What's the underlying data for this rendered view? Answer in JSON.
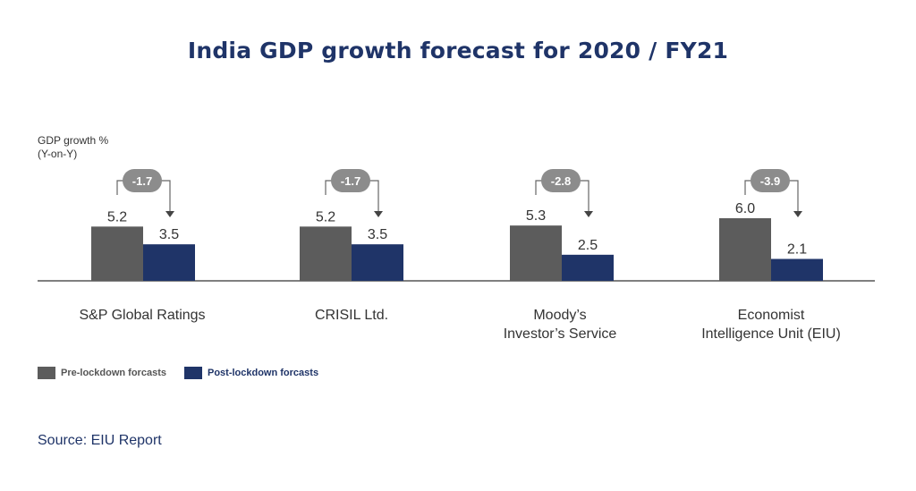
{
  "chart_data": {
    "type": "bar",
    "title": "India GDP growth forecast for 2020 / FY21",
    "ylabel": [
      "GDP growth %",
      "(Y-on-Y)"
    ],
    "categories": [
      [
        "S&P Global Ratings"
      ],
      [
        "CRISIL Ltd."
      ],
      [
        "Moody’s",
        "Investor’s Service"
      ],
      [
        "Economist",
        "Intelligence Unit (EIU)"
      ]
    ],
    "series": [
      {
        "name": "Pre-lockdown forcasts",
        "values": [
          5.2,
          5.2,
          5.3,
          6.0
        ],
        "color": "#5c5c5c"
      },
      {
        "name": "Post-lockdown forcasts",
        "values": [
          3.5,
          3.5,
          2.5,
          2.1
        ],
        "color": "#1f3468"
      }
    ],
    "changes": [
      "-1.7",
      "-1.7",
      "-2.8",
      "-3.9"
    ],
    "value_labels": [
      [
        "5.2",
        "5.2",
        "5.3",
        "6.0"
      ],
      [
        "3.5",
        "3.5",
        "2.5",
        "2.1"
      ]
    ],
    "ylim": [
      0,
      6.0
    ],
    "grid": false,
    "legend_position": "bottom-left",
    "colors": {
      "pre": "#5c5c5c",
      "post": "#1f3468",
      "badge": "#8c8c8c",
      "title": "#1f3468"
    }
  },
  "source": "Source: EIU Report"
}
